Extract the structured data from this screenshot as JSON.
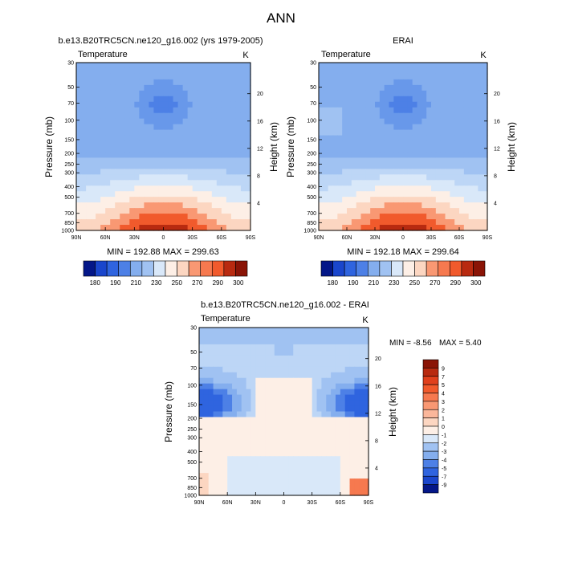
{
  "page_title": "ANN",
  "palette_warm": [
    "#fdefe6",
    "#fcd6c1",
    "#fbb79b",
    "#f99873",
    "#f6794f",
    "#f15a2c",
    "#e0401c",
    "#b82a10",
    "#8a1406"
  ],
  "palette_cool": [
    "#d9e8f9",
    "#bdd6f6",
    "#a0c2f2",
    "#84aeee",
    "#6898ea",
    "#4d80e6",
    "#2f64df",
    "#1a46cc",
    "#0a2aa0",
    "#041788"
  ],
  "tick_labels": {
    "pressure": [
      "30",
      "50",
      "70",
      "100",
      "150",
      "200",
      "250",
      "300",
      "400",
      "500",
      "700",
      "850",
      "1000"
    ],
    "lat": [
      "90N",
      "60N",
      "30N",
      "0",
      "30S",
      "60S",
      "90S"
    ],
    "height_top": [
      "20",
      "16",
      "12",
      "8",
      "4"
    ]
  },
  "chart_data": [
    {
      "type": "heatmap",
      "title": "b.e13.B20TRC5CN.ne120_g16.002 (yrs 1979-2005)",
      "left_label": "Temperature",
      "right_label": "K",
      "ylabel": "Pressure (mb)",
      "y2label": "Height (km)",
      "stats": "MIN = 192.88  MAX = 299.63",
      "min": 192.88,
      "max": 299.63,
      "colorbar": [
        "180",
        "190",
        "210",
        "230",
        "250",
        "270",
        "290",
        "300"
      ],
      "colorbar_colors": [
        "#041788",
        "#1a46cc",
        "#4d80e6",
        "#84aeee",
        "#bdd6f6",
        "#ffffff",
        "#fcd6c1",
        "#f99873",
        "#f15a2c",
        "#b82a10",
        "#8a1406"
      ],
      "field": "model"
    },
    {
      "type": "heatmap",
      "title": "ERAI",
      "left_label": "Temperature",
      "right_label": "K",
      "ylabel": "Pressure (mb)",
      "y2label": "Height (km)",
      "stats": "MIN = 192.18  MAX = 299.64",
      "min": 192.18,
      "max": 299.64,
      "colorbar": [
        "180",
        "190",
        "210",
        "230",
        "250",
        "270",
        "290",
        "300"
      ],
      "colorbar_colors": [
        "#041788",
        "#1a46cc",
        "#4d80e6",
        "#84aeee",
        "#bdd6f6",
        "#ffffff",
        "#fcd6c1",
        "#f99873",
        "#f15a2c",
        "#b82a10",
        "#8a1406"
      ],
      "field": "erai"
    },
    {
      "type": "heatmap",
      "title": "b.e13.B20TRC5CN.ne120_g16.002 - ERAI",
      "left_label": "Temperature",
      "right_label": "K",
      "ylabel": "Pressure (mb)",
      "y2label": "Height (km)",
      "stats_min": "MIN = -8.56",
      "stats_max": "MAX =   5.40",
      "min": -8.56,
      "max": 5.4,
      "colorbar": [
        "9",
        "7",
        "5",
        "4",
        "3",
        "2",
        "1",
        "0",
        "-1",
        "-2",
        "-3",
        "-4",
        "-5",
        "-7",
        "-9"
      ],
      "colorbar_colors": [
        "#8a1406",
        "#b82a10",
        "#e0401c",
        "#f15a2c",
        "#f6794f",
        "#f99873",
        "#fbb79b",
        "#fcd6c1",
        "#fdefe6",
        "#d9e8f9",
        "#a0c2f2",
        "#84aeee",
        "#4d80e6",
        "#2f64df",
        "#1a46cc",
        "#041788"
      ],
      "field": "diff"
    }
  ]
}
